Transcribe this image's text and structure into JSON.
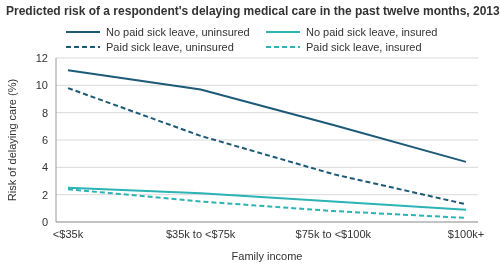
{
  "chart_data": {
    "type": "line",
    "title": "Predicted risk of a respondent's delaying medical care in the past twelve months, 2013",
    "x_label": "Family income",
    "y_label": "Risk of delaying care (%)",
    "categories": [
      "<$35k",
      "$35k to <$75k",
      "$75k to <$100k",
      "$100k+"
    ],
    "series": [
      {
        "name": "No paid sick leave, uninsured",
        "color": "#1d5a78",
        "line_style": "solid",
        "values": [
          11.1,
          9.7,
          7.1,
          4.4
        ]
      },
      {
        "name": "Paid sick leave, uninsured",
        "color": "#1d5a78",
        "line_style": "dashed",
        "values": [
          9.8,
          6.3,
          3.5,
          1.3
        ]
      },
      {
        "name": "No paid sick leave, insured",
        "color": "#2bb3b5",
        "line_style": "solid",
        "values": [
          2.5,
          2.1,
          1.5,
          0.9
        ]
      },
      {
        "name": "Paid sick leave, insured",
        "color": "#2bb3b5",
        "line_style": "dashed",
        "values": [
          2.4,
          1.5,
          0.8,
          0.3
        ]
      }
    ],
    "ylim": [
      0,
      12
    ],
    "yticks": [
      0,
      2,
      4,
      6,
      8,
      10,
      12
    ],
    "grid": true,
    "legend": "top"
  }
}
